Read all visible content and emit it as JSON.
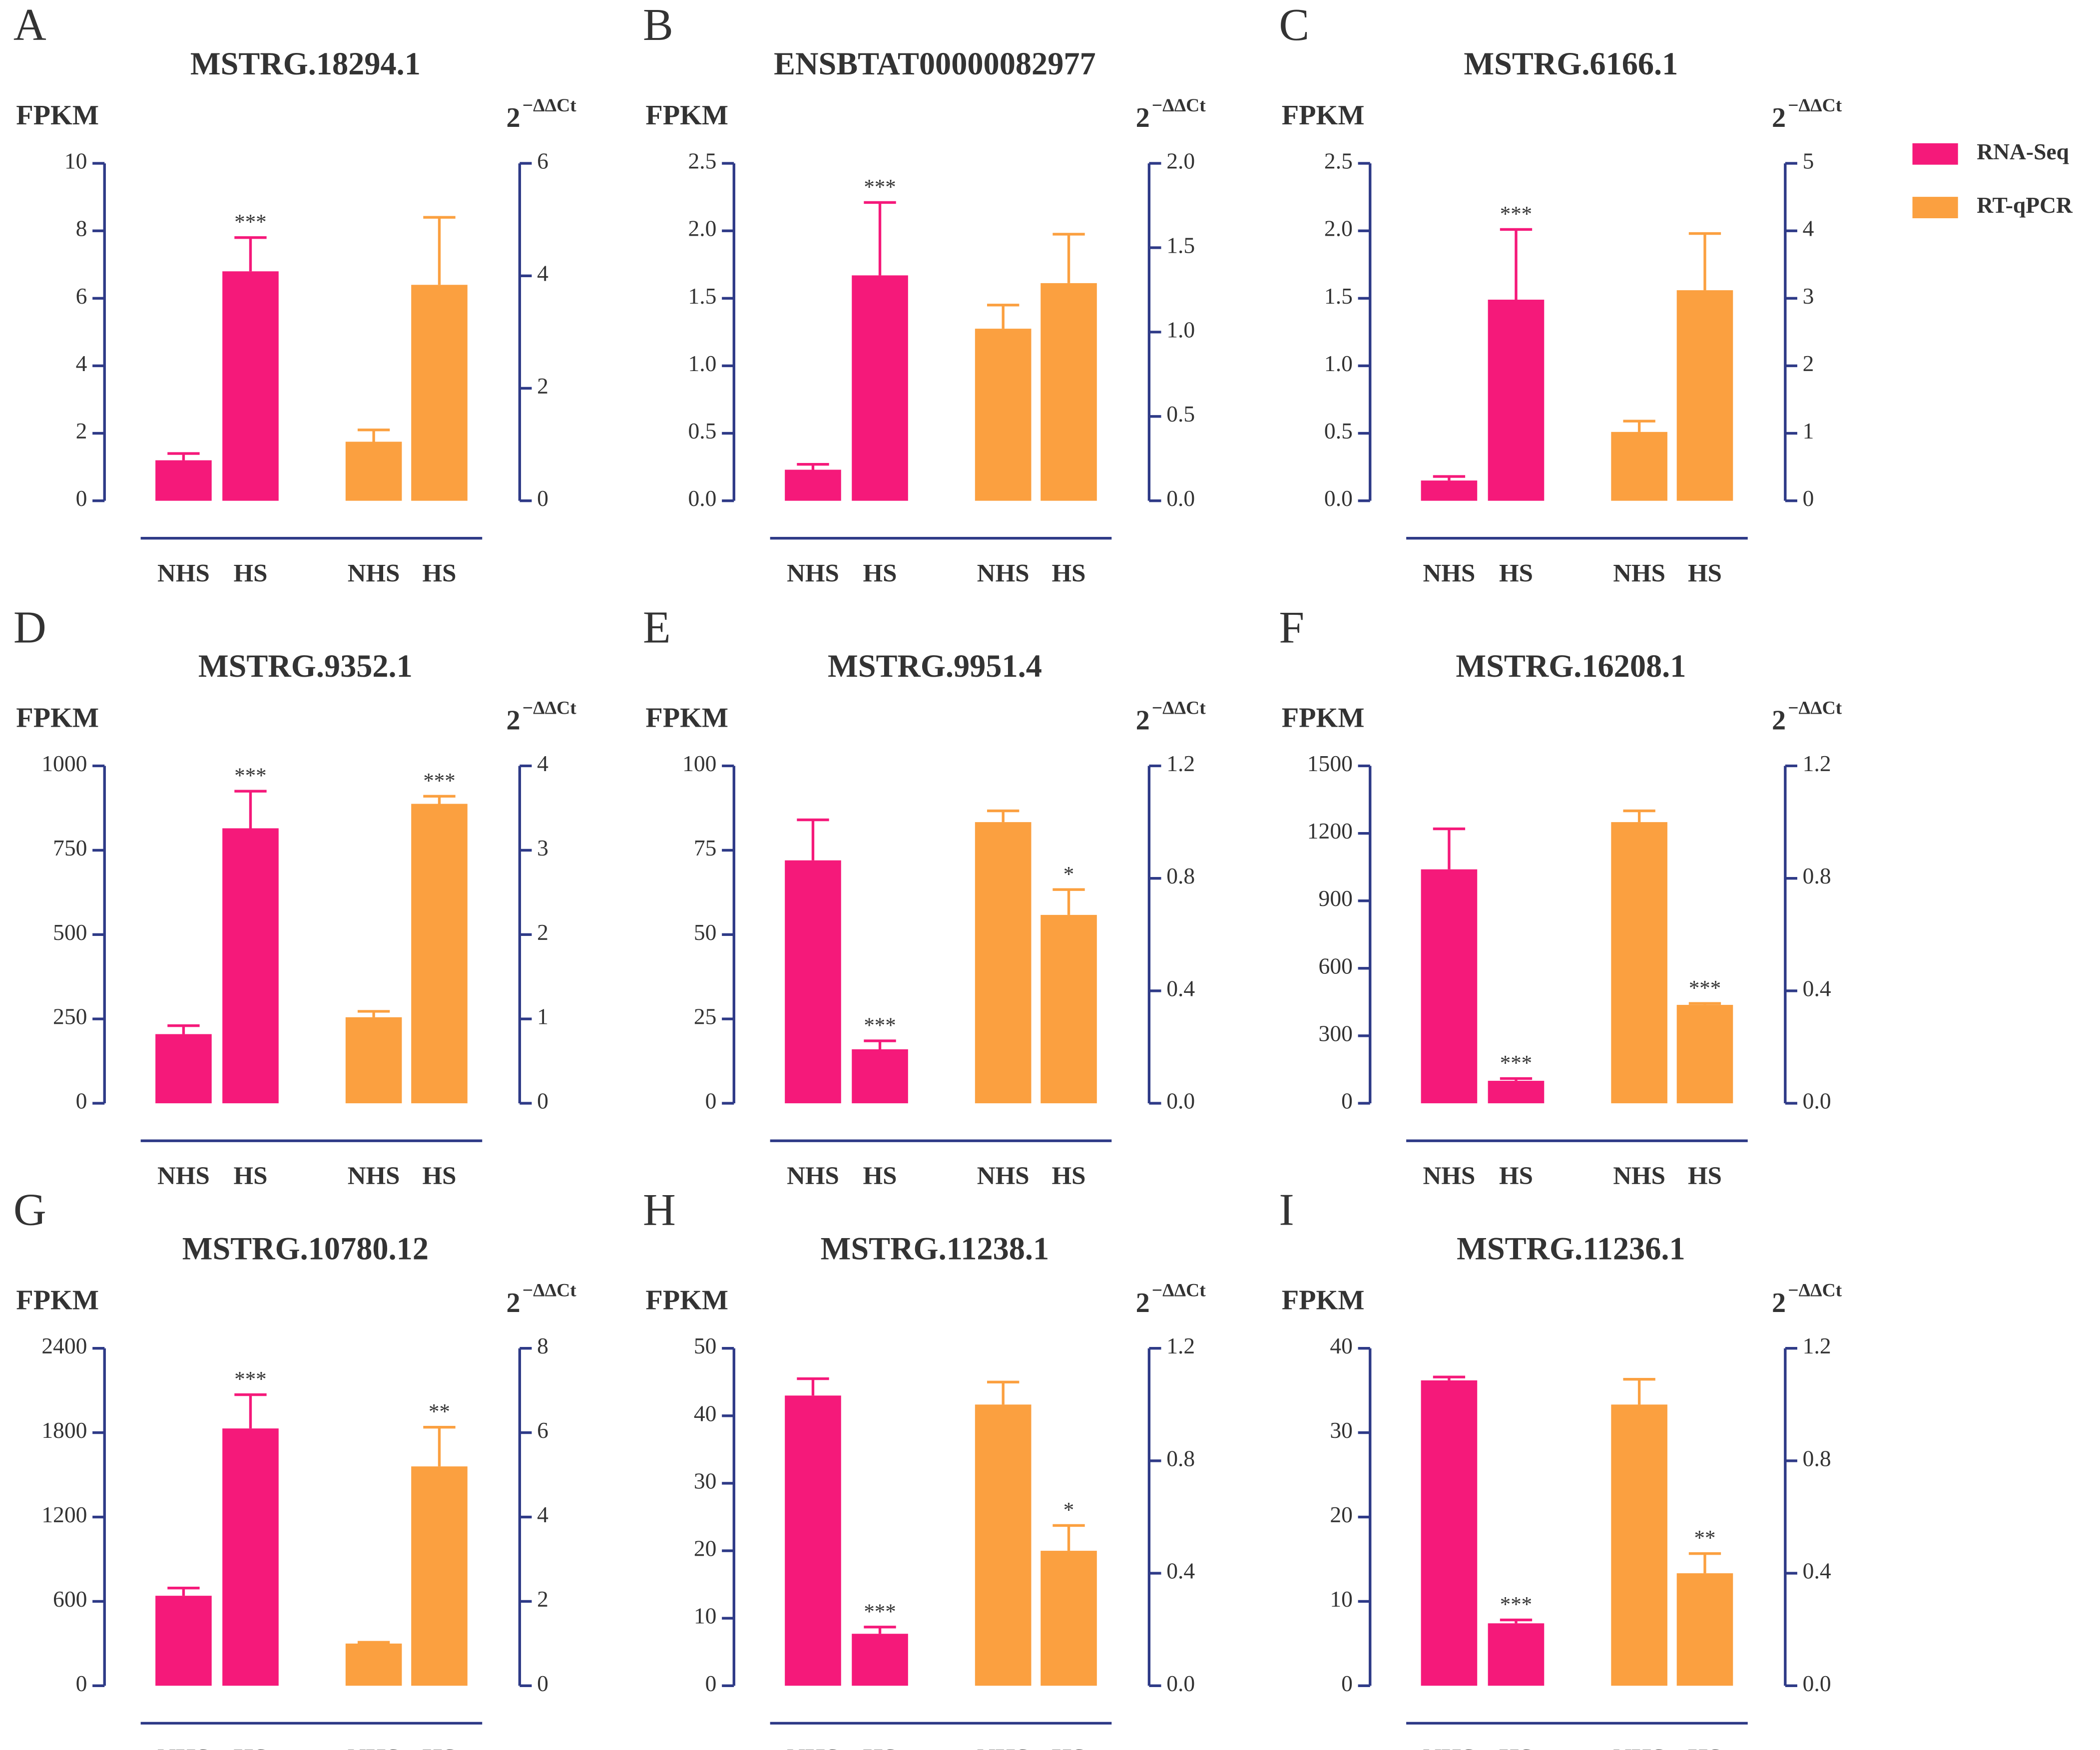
{
  "chart_data": [
    {
      "type": "bar",
      "panel": "A",
      "title": "MSTRG.18294.1",
      "y_label": "FPKM",
      "y2_label": "2",
      "y2_label_sup": "−ΔΔCt",
      "categories": [
        "NHS",
        "HS",
        "NHS",
        "HS"
      ],
      "series": [
        {
          "name": "RNA-Seq",
          "color": "#f5197a",
          "values": [
            1.2,
            6.8,
            null,
            null
          ],
          "errors": [
            0.2,
            1.0,
            null,
            null
          ]
        },
        {
          "name": "RT-qPCR",
          "color": "#fba040",
          "axis": "y2",
          "values": [
            null,
            null,
            1.05,
            3.84
          ],
          "errors": [
            null,
            null,
            0.21,
            1.2
          ]
        }
      ],
      "annotations": [
        null,
        "***",
        null,
        null
      ],
      "ylim": [
        0,
        10
      ],
      "yticks": [
        0,
        2,
        4,
        6,
        8,
        10
      ],
      "y2lim": [
        0,
        6
      ],
      "y2ticks": [
        0,
        2,
        4,
        6
      ]
    },
    {
      "type": "bar",
      "panel": "B",
      "title": "ENSBTAT00000082977",
      "y_label": "FPKM",
      "y2_label": "2",
      "y2_label_sup": "−ΔΔCt",
      "categories": [
        "NHS",
        "HS",
        "NHS",
        "HS"
      ],
      "series": [
        {
          "name": "RNA-Seq",
          "color": "#f5197a",
          "values": [
            0.23,
            1.67,
            null,
            null
          ],
          "errors": [
            0.04,
            0.54,
            null,
            null
          ]
        },
        {
          "name": "RT-qPCR",
          "color": "#fba040",
          "axis": "y2",
          "values": [
            null,
            null,
            1.02,
            1.29
          ],
          "errors": [
            null,
            null,
            0.14,
            0.29
          ]
        }
      ],
      "annotations": [
        null,
        "***",
        null,
        null
      ],
      "ylim": [
        0,
        2.5
      ],
      "yticks": [
        {
          "value": 0,
          "label": "0.0"
        },
        0.5,
        {
          "value": 1,
          "label": "1.0"
        },
        1.5,
        {
          "value": 2,
          "label": "2.0"
        },
        2.5
      ],
      "y2lim": [
        0,
        2
      ],
      "y2ticks": [
        {
          "value": 0,
          "label": "0.0"
        },
        0.5,
        {
          "value": 1,
          "label": "1.0"
        },
        1.5,
        {
          "value": 2,
          "label": "2.0"
        }
      ]
    },
    {
      "type": "bar",
      "panel": "C",
      "title": "MSTRG.6166.1",
      "y_label": "FPKM",
      "y2_label": "2",
      "y2_label_sup": "−ΔΔCt",
      "categories": [
        "NHS",
        "HS",
        "NHS",
        "HS"
      ],
      "series": [
        {
          "name": "RNA-Seq",
          "color": "#f5197a",
          "values": [
            0.15,
            1.49,
            null,
            null
          ],
          "errors": [
            0.03,
            0.52,
            null,
            null
          ]
        },
        {
          "name": "RT-qPCR",
          "color": "#fba040",
          "axis": "y2",
          "values": [
            null,
            null,
            1.02,
            3.12
          ],
          "errors": [
            null,
            null,
            0.16,
            0.84
          ]
        }
      ],
      "annotations": [
        null,
        "***",
        null,
        null
      ],
      "ylim": [
        0,
        2.5
      ],
      "yticks": [
        {
          "value": 0,
          "label": "0.0"
        },
        0.5,
        {
          "value": 1,
          "label": "1.0"
        },
        1.5,
        {
          "value": 2,
          "label": "2.0"
        },
        2.5
      ],
      "y2lim": [
        0,
        5
      ],
      "y2ticks": [
        0,
        1,
        2,
        3,
        4,
        5
      ]
    },
    {
      "type": "bar",
      "panel": "D",
      "title": "MSTRG.9352.1",
      "y_label": "FPKM",
      "y2_label": "2",
      "y2_label_sup": "−ΔΔCt",
      "categories": [
        "NHS",
        "HS",
        "NHS",
        "HS"
      ],
      "series": [
        {
          "name": "RNA-Seq",
          "color": "#f5197a",
          "values": [
            205,
            815,
            null,
            null
          ],
          "errors": [
            25,
            110,
            null,
            null
          ]
        },
        {
          "name": "RT-qPCR",
          "color": "#fba040",
          "axis": "y2",
          "values": [
            null,
            null,
            1.02,
            3.55
          ],
          "errors": [
            null,
            null,
            0.07,
            0.09
          ]
        }
      ],
      "annotations": [
        null,
        "***",
        null,
        "***"
      ],
      "ylim": [
        0,
        1000
      ],
      "yticks": [
        0,
        250,
        500,
        750,
        1000
      ],
      "y2lim": [
        0,
        4
      ],
      "y2ticks": [
        0,
        1,
        2,
        3,
        4
      ]
    },
    {
      "type": "bar",
      "panel": "E",
      "title": "MSTRG.9951.4",
      "y_label": "FPKM",
      "y2_label": "2",
      "y2_label_sup": "−ΔΔCt",
      "categories": [
        "NHS",
        "HS",
        "NHS",
        "HS"
      ],
      "series": [
        {
          "name": "RNA-Seq",
          "color": "#f5197a",
          "values": [
            72,
            16,
            null,
            null
          ],
          "errors": [
            12,
            2.5,
            null,
            null
          ]
        },
        {
          "name": "RT-qPCR",
          "color": "#fba040",
          "axis": "y2",
          "values": [
            null,
            null,
            1.0,
            0.67
          ],
          "errors": [
            null,
            null,
            0.04,
            0.09
          ]
        }
      ],
      "annotations": [
        null,
        "***",
        null,
        "*"
      ],
      "ylim": [
        0,
        100
      ],
      "yticks": [
        0,
        25,
        50,
        75,
        100
      ],
      "y2lim": [
        0,
        1.2
      ],
      "y2ticks": [
        {
          "value": 0,
          "label": "0.0"
        },
        0.4,
        0.8,
        1.2
      ]
    },
    {
      "type": "bar",
      "panel": "F",
      "title": "MSTRG.16208.1",
      "y_label": "FPKM",
      "y2_label": "2",
      "y2_label_sup": "−ΔΔCt",
      "categories": [
        "NHS",
        "HS",
        "NHS",
        "HS"
      ],
      "series": [
        {
          "name": "RNA-Seq",
          "color": "#f5197a",
          "values": [
            1040,
            100,
            null,
            null
          ],
          "errors": [
            180,
            10,
            null,
            null
          ]
        },
        {
          "name": "RT-qPCR",
          "color": "#fba040",
          "axis": "y2",
          "values": [
            null,
            null,
            1.0,
            0.35
          ],
          "errors": [
            null,
            null,
            0.04,
            0.005
          ]
        }
      ],
      "annotations": [
        null,
        "***",
        null,
        "***"
      ],
      "ylim": [
        0,
        1500
      ],
      "yticks": [
        0,
        300,
        600,
        900,
        1200,
        1500
      ],
      "y2lim": [
        0,
        1.2
      ],
      "y2ticks": [
        {
          "value": 0,
          "label": "0.0"
        },
        0.4,
        0.8,
        1.2
      ]
    },
    {
      "type": "bar",
      "panel": "G",
      "title": "MSTRG.10780.12",
      "y_label": "FPKM",
      "y2_label": "2",
      "y2_label_sup": "−ΔΔCt",
      "categories": [
        "NHS",
        "HS",
        "NHS",
        "HS"
      ],
      "series": [
        {
          "name": "RNA-Seq",
          "color": "#f5197a",
          "values": [
            640,
            1830,
            null,
            null
          ],
          "errors": [
            55,
            240,
            null,
            null
          ]
        },
        {
          "name": "RT-qPCR",
          "color": "#fba040",
          "axis": "y2",
          "values": [
            null,
            null,
            1.0,
            5.2
          ],
          "errors": [
            null,
            null,
            0.03,
            0.93
          ]
        }
      ],
      "annotations": [
        null,
        "***",
        null,
        "**"
      ],
      "ylim": [
        0,
        2400
      ],
      "yticks": [
        0,
        600,
        1200,
        1800,
        2400
      ],
      "y2lim": [
        0,
        8
      ],
      "y2ticks": [
        0,
        2,
        4,
        6,
        8
      ]
    },
    {
      "type": "bar",
      "panel": "H",
      "title": "MSTRG.11238.1",
      "y_label": "FPKM",
      "y2_label": "2",
      "y2_label_sup": "−ΔΔCt",
      "categories": [
        "NHS",
        "HS",
        "NHS",
        "HS"
      ],
      "series": [
        {
          "name": "RNA-Seq",
          "color": "#f5197a",
          "values": [
            43,
            7.7,
            null,
            null
          ],
          "errors": [
            2.5,
            1,
            null,
            null
          ]
        },
        {
          "name": "RT-qPCR",
          "color": "#fba040",
          "axis": "y2",
          "values": [
            null,
            null,
            1.0,
            0.48
          ],
          "errors": [
            null,
            null,
            0.08,
            0.09
          ]
        }
      ],
      "annotations": [
        null,
        "***",
        null,
        "*"
      ],
      "ylim": [
        0,
        50
      ],
      "yticks": [
        0,
        10,
        20,
        30,
        40,
        50
      ],
      "y2lim": [
        0,
        1.2
      ],
      "y2ticks": [
        {
          "value": 0,
          "label": "0.0"
        },
        0.4,
        0.8,
        1.2
      ]
    },
    {
      "type": "bar",
      "panel": "I",
      "title": "MSTRG.11236.1",
      "y_label": "FPKM",
      "y2_label": "2",
      "y2_label_sup": "−ΔΔCt",
      "categories": [
        "NHS",
        "HS",
        "NHS",
        "HS"
      ],
      "series": [
        {
          "name": "RNA-Seq",
          "color": "#f5197a",
          "values": [
            36.2,
            7.4,
            null,
            null
          ],
          "errors": [
            0.4,
            0.4,
            null,
            null
          ]
        },
        {
          "name": "RT-qPCR",
          "color": "#fba040",
          "axis": "y2",
          "values": [
            null,
            null,
            1.0,
            0.4
          ],
          "errors": [
            null,
            null,
            0.09,
            0.07
          ]
        }
      ],
      "annotations": [
        null,
        "***",
        null,
        "**"
      ],
      "ylim": [
        0,
        40
      ],
      "yticks": [
        0,
        10,
        20,
        30,
        40
      ],
      "y2lim": [
        0,
        1.2
      ],
      "y2ticks": [
        {
          "value": 0,
          "label": "0.0"
        },
        0.4,
        0.8,
        1.2
      ]
    }
  ]
}
